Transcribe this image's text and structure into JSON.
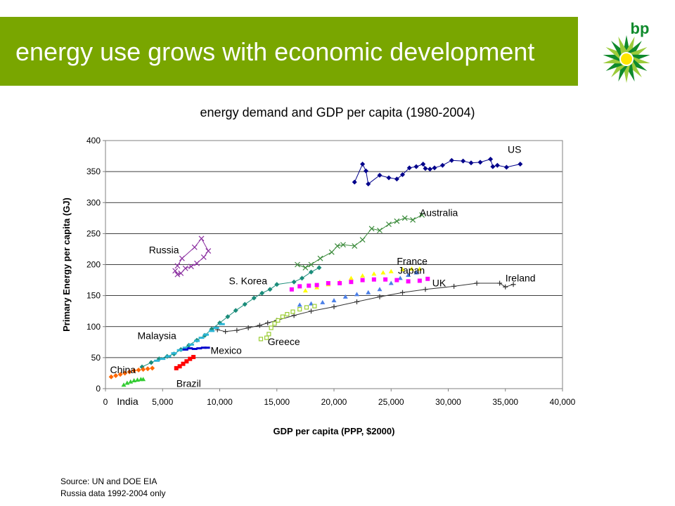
{
  "header": {
    "title": "energy use grows with economic development",
    "background_color": "#79a600",
    "logo_text": "bp"
  },
  "chart_title": "energy demand and GDP per capita (1980-2004)",
  "source": {
    "line1": "Source: UN and DOE EIA",
    "line2": "Russia data 1992-2004 only"
  },
  "chart_data": {
    "type": "scatter",
    "title": "energy demand and GDP per capita (1980-2004)",
    "xlabel": "GDP per capita (PPP, $2000)",
    "ylabel": "Primary Energy per capita (GJ)",
    "xlim": [
      0,
      40000
    ],
    "ylim": [
      0,
      400
    ],
    "xticks": [
      0,
      5000,
      10000,
      15000,
      20000,
      25000,
      30000,
      35000,
      40000
    ],
    "yticks": [
      0,
      50,
      100,
      150,
      200,
      250,
      300,
      350,
      400
    ],
    "xtick_labels": [
      "0",
      "5,000",
      "10,000",
      "15,000",
      "20,000",
      "25,000",
      "30,000",
      "35,000",
      "40,000"
    ],
    "ytick_labels": [
      "0",
      "50",
      "100",
      "150",
      "200",
      "250",
      "300",
      "350",
      "400"
    ],
    "grid": "horizontal",
    "series": [
      {
        "name": "US",
        "color": "#00008b",
        "marker": "diamond",
        "connected": true,
        "label_at": [
          35200,
          380
        ],
        "points": [
          [
            21800,
            333
          ],
          [
            22500,
            362
          ],
          [
            22800,
            351
          ],
          [
            23000,
            330
          ],
          [
            24000,
            344
          ],
          [
            24800,
            340
          ],
          [
            25500,
            338
          ],
          [
            26000,
            345
          ],
          [
            26600,
            356
          ],
          [
            27200,
            358
          ],
          [
            27800,
            362
          ],
          [
            28000,
            355
          ],
          [
            28400,
            354
          ],
          [
            28800,
            356
          ],
          [
            29500,
            360
          ],
          [
            30300,
            368
          ],
          [
            31300,
            367
          ],
          [
            32000,
            364
          ],
          [
            32800,
            365
          ],
          [
            33700,
            370
          ],
          [
            33900,
            358
          ],
          [
            34300,
            360
          ],
          [
            35100,
            357
          ],
          [
            36300,
            362
          ]
        ]
      },
      {
        "name": "Australia",
        "color": "#3a8a3a",
        "marker": "x",
        "connected": true,
        "label_at": [
          27500,
          278
        ],
        "points": [
          [
            16800,
            200
          ],
          [
            17500,
            195
          ],
          [
            18000,
            200
          ],
          [
            18800,
            210
          ],
          [
            19800,
            220
          ],
          [
            20300,
            230
          ],
          [
            20800,
            232
          ],
          [
            21800,
            230
          ],
          [
            22500,
            240
          ],
          [
            23300,
            258
          ],
          [
            24000,
            255
          ],
          [
            24800,
            265
          ],
          [
            25500,
            270
          ],
          [
            26200,
            275
          ],
          [
            26900,
            272
          ],
          [
            27700,
            280
          ]
        ]
      },
      {
        "name": "France",
        "color": "#ffff00",
        "marker": "triangle",
        "connected": false,
        "label_at": [
          25500,
          200
        ],
        "points": [
          [
            17500,
            158
          ],
          [
            18500,
            163
          ],
          [
            19500,
            168
          ],
          [
            20500,
            172
          ],
          [
            21500,
            178
          ],
          [
            22500,
            182
          ],
          [
            23500,
            185
          ],
          [
            24300,
            187
          ],
          [
            25000,
            189
          ],
          [
            26000,
            192
          ],
          [
            26800,
            193
          ],
          [
            27500,
            193
          ]
        ]
      },
      {
        "name": "Japan",
        "color": "#4a7fe8",
        "marker": "triangle",
        "connected": false,
        "label_at": [
          25600,
          185
        ],
        "points": [
          [
            17000,
            135
          ],
          [
            18000,
            137
          ],
          [
            19000,
            139
          ],
          [
            20000,
            142
          ],
          [
            21000,
            148
          ],
          [
            22000,
            152
          ],
          [
            23000,
            155
          ],
          [
            24000,
            160
          ],
          [
            25000,
            170
          ],
          [
            25800,
            178
          ],
          [
            26500,
            183
          ],
          [
            27200,
            187
          ]
        ]
      },
      {
        "name": "UK",
        "color": "#ff00ff",
        "marker": "square",
        "connected": false,
        "label_at": [
          28600,
          165
        ],
        "points": [
          [
            16300,
            160
          ],
          [
            17000,
            165
          ],
          [
            17800,
            166
          ],
          [
            18500,
            167
          ],
          [
            19500,
            170
          ],
          [
            20500,
            170
          ],
          [
            21500,
            172
          ],
          [
            22500,
            175
          ],
          [
            23500,
            176
          ],
          [
            24500,
            176
          ],
          [
            25500,
            175
          ],
          [
            26500,
            173
          ],
          [
            27500,
            174
          ],
          [
            28200,
            177
          ]
        ]
      },
      {
        "name": "Ireland",
        "color": "#333333",
        "marker": "plus",
        "connected": true,
        "label_at": [
          35000,
          173
        ],
        "points": [
          [
            9800,
            95
          ],
          [
            10500,
            92
          ],
          [
            11500,
            94
          ],
          [
            12500,
            98
          ],
          [
            13500,
            102
          ],
          [
            14200,
            106
          ],
          [
            15000,
            110
          ],
          [
            16500,
            118
          ],
          [
            18000,
            125
          ],
          [
            20000,
            132
          ],
          [
            22000,
            140
          ],
          [
            24000,
            148
          ],
          [
            26000,
            155
          ],
          [
            28000,
            160
          ],
          [
            30500,
            165
          ],
          [
            32500,
            170
          ],
          [
            34500,
            170
          ],
          [
            35000,
            164
          ],
          [
            35700,
            168
          ]
        ]
      },
      {
        "name": "S. Korea",
        "color": "#1a8c7a",
        "marker": "diamond",
        "connected": true,
        "label_at": [
          10800,
          168
        ],
        "points": [
          [
            3200,
            35
          ],
          [
            4000,
            42
          ],
          [
            4700,
            48
          ],
          [
            5400,
            52
          ],
          [
            6000,
            56
          ],
          [
            6600,
            63
          ],
          [
            7300,
            70
          ],
          [
            8000,
            78
          ],
          [
            8700,
            86
          ],
          [
            9300,
            96
          ],
          [
            10000,
            106
          ],
          [
            10700,
            116
          ],
          [
            11400,
            126
          ],
          [
            12200,
            136
          ],
          [
            13000,
            146
          ],
          [
            13700,
            154
          ],
          [
            14400,
            160
          ],
          [
            15000,
            168
          ],
          [
            16500,
            172
          ],
          [
            17200,
            178
          ],
          [
            18000,
            188
          ],
          [
            18700,
            195
          ]
        ]
      },
      {
        "name": "Russia",
        "color": "#8b2fa0",
        "marker": "x",
        "connected": true,
        "label_at": [
          3800,
          218
        ],
        "points": [
          [
            6100,
            190
          ],
          [
            6300,
            184
          ],
          [
            6600,
            186
          ],
          [
            7000,
            194
          ],
          [
            7500,
            197
          ],
          [
            8000,
            202
          ],
          [
            8600,
            212
          ],
          [
            9000,
            222
          ],
          [
            8400,
            242
          ],
          [
            7800,
            228
          ],
          [
            6700,
            210
          ],
          [
            6300,
            198
          ]
        ]
      },
      {
        "name": "Malaysia",
        "color": "#2bb5d6",
        "marker": "dash",
        "connected": false,
        "label_at": [
          2800,
          80
        ],
        "points": [
          [
            4500,
            45
          ],
          [
            5000,
            48
          ],
          [
            5500,
            52
          ],
          [
            6000,
            57
          ],
          [
            6500,
            62
          ],
          [
            7000,
            66
          ],
          [
            7500,
            71
          ],
          [
            8000,
            77
          ],
          [
            8400,
            82
          ],
          [
            8800,
            87
          ],
          [
            9300,
            93
          ],
          [
            9700,
            98
          ],
          [
            10200,
            104
          ]
        ]
      },
      {
        "name": "Mexico",
        "color": "#0000cc",
        "marker": "dash",
        "connected": false,
        "label_at": [
          9200,
          56
        ],
        "points": [
          [
            7000,
            63
          ],
          [
            7400,
            65
          ],
          [
            7800,
            64
          ],
          [
            8200,
            65
          ],
          [
            8600,
            66
          ],
          [
            8900,
            66
          ]
        ]
      },
      {
        "name": "Greece",
        "color": "#9acd32",
        "marker": "square-open",
        "connected": false,
        "label_at": [
          14200,
          70
        ],
        "points": [
          [
            13600,
            80
          ],
          [
            14100,
            82
          ],
          [
            14300,
            88
          ],
          [
            14500,
            98
          ],
          [
            14800,
            105
          ],
          [
            15100,
            110
          ],
          [
            15500,
            116
          ],
          [
            15900,
            120
          ],
          [
            16400,
            124
          ],
          [
            17000,
            128
          ],
          [
            17600,
            131
          ],
          [
            18300,
            133
          ]
        ]
      },
      {
        "name": "Brazil",
        "color": "#ff0000",
        "marker": "square",
        "connected": false,
        "label_at": [
          6200,
          3
        ],
        "points": [
          [
            6200,
            33
          ],
          [
            6500,
            36
          ],
          [
            6800,
            40
          ],
          [
            7100,
            44
          ],
          [
            7400,
            48
          ],
          [
            7700,
            51
          ]
        ]
      },
      {
        "name": "China",
        "color": "#ff6600",
        "marker": "diamond",
        "connected": false,
        "label_at": [
          400,
          25
        ],
        "points": [
          [
            500,
            19
          ],
          [
            900,
            21
          ],
          [
            1300,
            23
          ],
          [
            1700,
            25
          ],
          [
            2100,
            27
          ],
          [
            2500,
            29
          ],
          [
            2900,
            30
          ],
          [
            3300,
            31
          ],
          [
            3700,
            32
          ],
          [
            4100,
            33
          ]
        ]
      },
      {
        "name": "India",
        "color": "#33cc33",
        "marker": "triangle",
        "connected": false,
        "label_at": [
          1000,
          -26
        ],
        "points": [
          [
            1600,
            6
          ],
          [
            1900,
            9
          ],
          [
            2200,
            11
          ],
          [
            2500,
            13
          ],
          [
            2800,
            14
          ],
          [
            3100,
            15
          ],
          [
            3300,
            15
          ]
        ]
      }
    ]
  }
}
